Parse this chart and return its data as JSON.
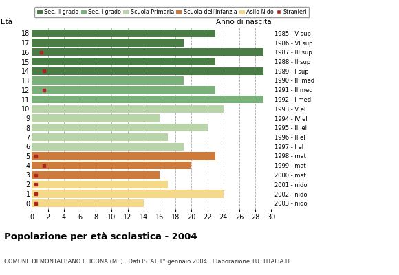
{
  "ages": [
    18,
    17,
    16,
    15,
    14,
    13,
    12,
    11,
    10,
    9,
    8,
    7,
    6,
    5,
    4,
    3,
    2,
    1,
    0
  ],
  "values": [
    23,
    19,
    29,
    23,
    29,
    19,
    23,
    29,
    24,
    16,
    22,
    17,
    19,
    23,
    20,
    16,
    17,
    24,
    14
  ],
  "stranieri": [
    0,
    0,
    1.2,
    0,
    1.5,
    0,
    1.5,
    0,
    0,
    0,
    0,
    0,
    0,
    0.5,
    1.5,
    0.5,
    0.5,
    0.5,
    0.5
  ],
  "bar_colors": [
    "#4a7c45",
    "#4a7c45",
    "#4a7c45",
    "#4a7c45",
    "#4a7c45",
    "#7ab07a",
    "#7ab07a",
    "#7ab07a",
    "#b8d4a8",
    "#b8d4a8",
    "#b8d4a8",
    "#b8d4a8",
    "#b8d4a8",
    "#cd7a3a",
    "#cd7a3a",
    "#cd7a3a",
    "#f5d98a",
    "#f5d98a",
    "#f5d98a"
  ],
  "right_labels": [
    "1985 - V sup",
    "1986 - VI sup",
    "1987 - III sup",
    "1988 - II sup",
    "1989 - I sup",
    "1990 - III med",
    "1991 - II med",
    "1992 - I med",
    "1993 - V el",
    "1994 - IV el",
    "1995 - III el",
    "1996 - II el",
    "1997 - I el",
    "1998 - mat",
    "1999 - mat",
    "2000 - mat",
    "2001 - nido",
    "2002 - nido",
    "2003 - nido"
  ],
  "legend_labels": [
    "Sec. II grado",
    "Sec. I grado",
    "Scuola Primaria",
    "Scuola dell'Infanzia",
    "Asilo Nido",
    "Stranieri"
  ],
  "legend_colors": [
    "#4a7c45",
    "#7ab07a",
    "#b8d4a8",
    "#cd7a3a",
    "#f5d98a",
    "#b22222"
  ],
  "title": "Popolazione per età scolastica - 2004",
  "subtitle": "COMUNE DI MONTALBANO ELICONA (ME) · Dati ISTAT 1° gennaio 2004 · Elaborazione TUTTITALIA.IT",
  "xlabel_eta": "Età",
  "xlabel_anno": "Anno di nascita",
  "xlim": [
    0,
    30
  ],
  "xticks": [
    0,
    2,
    4,
    6,
    8,
    10,
    12,
    14,
    16,
    18,
    20,
    22,
    24,
    26,
    28,
    30
  ],
  "stranieri_color": "#b22222",
  "stranieri_size": 3.5,
  "grid_color": "#aaaaaa",
  "bg_color": "#ffffff",
  "bar_height": 0.82
}
